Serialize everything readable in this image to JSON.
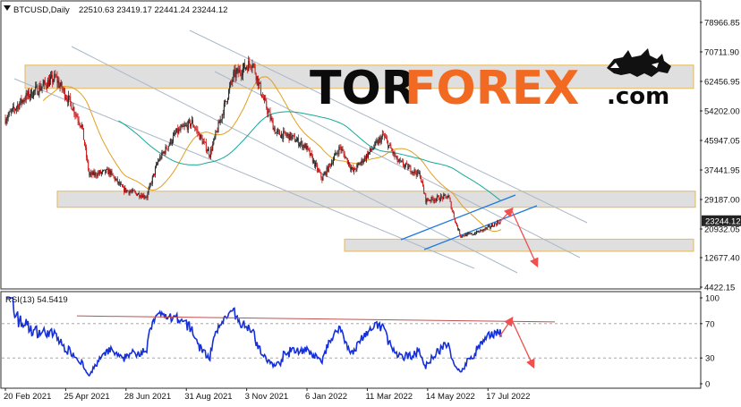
{
  "header": {
    "symbol": "BTCUSD,Daily",
    "ohlc": "22510.63 23419.17 22441.24 23244.12",
    "arrow_icon": "triangle-down-icon"
  },
  "logo": {
    "part1": "TOR",
    "part2": "FOREX",
    "part3": ".com",
    "icon": "bull-bear-icon"
  },
  "colors": {
    "bull": "#222222",
    "bear": "#d01818",
    "ma_fast": "#e0a020",
    "ma_slow": "#12a89a",
    "zone_fill": "#dcdcdc",
    "zone_border": "#e8b040",
    "channel_line": "#1e78e0",
    "trend_line": "#aab8c8",
    "forecast_arrow": "#f05050",
    "rsi_line": "#1530d8",
    "rsi_trend": "#c05050",
    "logo_orange": "#f26a21"
  },
  "rsi_panel": {
    "label": "RSI(13) 54.5419"
  },
  "chart_data": [
    {
      "type": "candlestick",
      "title": "BTCUSD,Daily",
      "y_ticks": [
        4422.15,
        12677.4,
        20932.05,
        29187.0,
        37441.95,
        45947.05,
        54202.0,
        62456.95,
        70711.9,
        78966.85
      ],
      "y_tick_labels": [
        "4422.15",
        "12677.40",
        "20932.05",
        "29187.00",
        "37441.95",
        "45947.05",
        "54202.00",
        "62456.95",
        "70711.90",
        "78966.85"
      ],
      "ylim": [
        3000,
        85000
      ],
      "x_tick_labels": [
        "20 Feb 2021",
        "25 Apr 2021",
        "28 Jun 2021",
        "31 Aug 2021",
        "3 Nov 2021",
        "6 Jan 2022",
        "11 Mar 2022",
        "14 May 2022",
        "17 Jul 2022"
      ],
      "x_range": [
        "2021-02-20",
        "2022-07-31"
      ],
      "current_price": 23244.12,
      "current_price_label": "23244.12",
      "price_path": [
        [
          "2021-02-20",
          52000
        ],
        [
          "2021-03-13",
          58000
        ],
        [
          "2021-04-14",
          63500
        ],
        [
          "2021-05-01",
          56000
        ],
        [
          "2021-05-12",
          50000
        ],
        [
          "2021-05-20",
          36000
        ],
        [
          "2021-06-10",
          37000
        ],
        [
          "2021-06-25",
          32000
        ],
        [
          "2021-07-20",
          30000
        ],
        [
          "2021-08-01",
          40000
        ],
        [
          "2021-08-20",
          48000
        ],
        [
          "2021-09-06",
          51000
        ],
        [
          "2021-09-25",
          42000
        ],
        [
          "2021-10-20",
          64000
        ],
        [
          "2021-11-09",
          68000
        ],
        [
          "2021-11-20",
          58000
        ],
        [
          "2021-12-04",
          48000
        ],
        [
          "2021-12-20",
          47000
        ],
        [
          "2022-01-05",
          44000
        ],
        [
          "2022-01-22",
          35000
        ],
        [
          "2022-02-10",
          44000
        ],
        [
          "2022-02-24",
          37000
        ],
        [
          "2022-03-28",
          47300
        ],
        [
          "2022-04-12",
          40000
        ],
        [
          "2022-05-06",
          36000
        ],
        [
          "2022-05-12",
          29000
        ],
        [
          "2022-06-05",
          30000
        ],
        [
          "2022-06-13",
          22500
        ],
        [
          "2022-06-18",
          19000
        ],
        [
          "2022-07-01",
          19500
        ],
        [
          "2022-07-15",
          21000
        ],
        [
          "2022-07-31",
          23244
        ]
      ],
      "series": [
        {
          "name": "",
          "kind": "moving-average-fast",
          "color": "#e0a020"
        },
        {
          "name": "",
          "kind": "moving-average-slow",
          "color": "#12a89a"
        }
      ],
      "support_resistance_zones": [
        {
          "from": 60500,
          "to": 67000
        },
        {
          "from": 27000,
          "to": 31500
        },
        {
          "from": 14500,
          "to": 18000
        }
      ],
      "forecast": {
        "up_target": 26500,
        "down_target": 10500
      }
    },
    {
      "type": "line",
      "title": "RSI(13) 54.5419",
      "series_name": "RSI(13)",
      "last_value": 54.5419,
      "ylim": [
        0,
        100
      ],
      "y_ticks": [
        0,
        30,
        70,
        100
      ],
      "y_tick_labels": [
        "0",
        "30",
        "70",
        "100"
      ],
      "levels": [
        30,
        70
      ],
      "forecast": {
        "up_target": 76,
        "down_target": 20
      }
    }
  ]
}
